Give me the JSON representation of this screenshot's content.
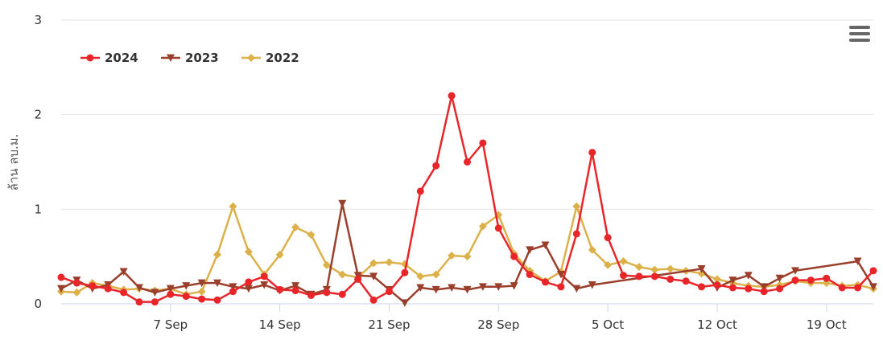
{
  "chart_data": {
    "type": "line",
    "title": "",
    "xlabel": "",
    "ylabel": "ล้าน ลบ.ม.",
    "ylim": [
      0,
      3
    ],
    "y_ticks": [
      "0",
      "1",
      "2",
      "3"
    ],
    "x_tick_labels": [
      "7 Sep",
      "14 Sep",
      "21 Sep",
      "28 Sep",
      "5 Oct",
      "12 Oct",
      "19 Oct"
    ],
    "legend_position": "top-left",
    "grid": true,
    "series": [
      {
        "name": "2024",
        "color": "#e8262a",
        "marker": "circle",
        "points": [
          [
            "2024-08-31",
            0.28
          ],
          [
            "2024-09-01",
            0.22
          ],
          [
            "2024-09-02",
            0.19
          ],
          [
            "2024-09-03",
            0.16
          ],
          [
            "2024-09-04",
            0.12
          ],
          [
            "2024-09-05",
            0.02
          ],
          [
            "2024-09-06",
            0.02
          ],
          [
            "2024-09-07",
            0.1
          ],
          [
            "2024-09-08",
            0.08
          ],
          [
            "2024-09-09",
            0.05
          ],
          [
            "2024-09-10",
            0.04
          ],
          [
            "2024-09-11",
            0.13
          ],
          [
            "2024-09-12",
            0.23
          ],
          [
            "2024-09-13",
            0.29
          ],
          [
            "2024-09-14",
            0.15
          ],
          [
            "2024-09-15",
            0.14
          ],
          [
            "2024-09-16",
            0.09
          ],
          [
            "2024-09-17",
            0.12
          ],
          [
            "2024-09-18",
            0.1
          ],
          [
            "2024-09-19",
            0.26
          ],
          [
            "2024-09-20",
            0.04
          ],
          [
            "2024-09-21",
            0.13
          ],
          [
            "2024-09-22",
            0.33
          ],
          [
            "2024-09-23",
            1.19
          ],
          [
            "2024-09-24",
            1.46
          ],
          [
            "2024-09-25",
            2.2
          ],
          [
            "2024-09-26",
            1.5
          ],
          [
            "2024-09-27",
            1.7
          ],
          [
            "2024-09-28",
            0.8
          ],
          [
            "2024-09-29",
            0.5
          ],
          [
            "2024-09-30",
            0.31
          ],
          [
            "2024-10-01",
            0.23
          ],
          [
            "2024-10-02",
            0.18
          ],
          [
            "2024-10-03",
            0.74
          ],
          [
            "2024-10-04",
            1.6
          ],
          [
            "2024-10-05",
            0.7
          ],
          [
            "2024-10-06",
            0.3
          ],
          [
            "2024-10-07",
            0.29
          ],
          [
            "2024-10-08",
            0.29
          ],
          [
            "2024-10-09",
            0.26
          ],
          [
            "2024-10-10",
            0.24
          ],
          [
            "2024-10-11",
            0.18
          ],
          [
            "2024-10-12",
            0.2
          ],
          [
            "2024-10-13",
            0.17
          ],
          [
            "2024-10-14",
            0.16
          ],
          [
            "2024-10-15",
            0.13
          ],
          [
            "2024-10-16",
            0.16
          ],
          [
            "2024-10-17",
            0.25
          ],
          [
            "2024-10-18",
            0.25
          ],
          [
            "2024-10-19",
            0.27
          ],
          [
            "2024-10-20",
            0.17
          ],
          [
            "2024-10-21",
            0.17
          ],
          [
            "2024-10-22",
            0.35
          ]
        ]
      },
      {
        "name": "2023",
        "color": "#9b3f2d",
        "marker": "triangle-down",
        "points": [
          [
            "2024-08-31",
            0.16
          ],
          [
            "2024-09-01",
            0.25
          ],
          [
            "2024-09-02",
            0.16
          ],
          [
            "2024-09-03",
            0.2
          ],
          [
            "2024-09-04",
            0.34
          ],
          [
            "2024-09-05",
            0.17
          ],
          [
            "2024-09-06",
            0.12
          ],
          [
            "2024-09-07",
            0.16
          ],
          [
            "2024-09-08",
            0.19
          ],
          [
            "2024-09-09",
            0.22
          ],
          [
            "2024-09-10",
            0.22
          ],
          [
            "2024-09-11",
            0.18
          ],
          [
            "2024-09-12",
            0.16
          ],
          [
            "2024-09-13",
            0.2
          ],
          [
            "2024-09-14",
            0.14
          ],
          [
            "2024-09-15",
            0.19
          ],
          [
            "2024-09-16",
            0.1
          ],
          [
            "2024-09-17",
            0.15
          ],
          [
            "2024-09-18",
            1.06
          ],
          [
            "2024-09-19",
            0.3
          ],
          [
            "2024-09-20",
            0.29
          ],
          [
            "2024-09-21",
            0.15
          ],
          [
            "2024-09-22",
            0.01
          ],
          [
            "2024-09-23",
            0.17
          ],
          [
            "2024-09-24",
            0.15
          ],
          [
            "2024-09-25",
            0.17
          ],
          [
            "2024-09-26",
            0.15
          ],
          [
            "2024-09-27",
            0.18
          ],
          [
            "2024-09-28",
            0.18
          ],
          [
            "2024-09-29",
            0.19
          ],
          [
            "2024-09-30",
            0.57
          ],
          [
            "2024-10-01",
            0.62
          ],
          [
            "2024-10-02",
            0.31
          ],
          [
            "2024-10-03",
            0.16
          ],
          [
            "2024-10-04",
            0.2
          ],
          [
            "2024-10-11",
            0.37
          ],
          [
            "2024-10-12",
            0.17
          ],
          [
            "2024-10-13",
            0.25
          ],
          [
            "2024-10-14",
            0.3
          ],
          [
            "2024-10-15",
            0.18
          ],
          [
            "2024-10-16",
            0.27
          ],
          [
            "2024-10-17",
            0.35
          ],
          [
            "2024-10-21",
            0.45
          ],
          [
            "2024-10-22",
            0.18
          ]
        ]
      },
      {
        "name": "2022",
        "color": "#dcb14a",
        "marker": "diamond",
        "points": [
          [
            "2024-08-31",
            0.13
          ],
          [
            "2024-09-01",
            0.12
          ],
          [
            "2024-09-02",
            0.22
          ],
          [
            "2024-09-03",
            0.19
          ],
          [
            "2024-09-04",
            0.15
          ],
          [
            "2024-09-05",
            0.16
          ],
          [
            "2024-09-06",
            0.14
          ],
          [
            "2024-09-07",
            0.16
          ],
          [
            "2024-09-08",
            0.1
          ],
          [
            "2024-09-09",
            0.13
          ],
          [
            "2024-09-10",
            0.52
          ],
          [
            "2024-09-11",
            1.03
          ],
          [
            "2024-09-12",
            0.55
          ],
          [
            "2024-09-13",
            0.31
          ],
          [
            "2024-09-14",
            0.52
          ],
          [
            "2024-09-15",
            0.81
          ],
          [
            "2024-09-16",
            0.73
          ],
          [
            "2024-09-17",
            0.41
          ],
          [
            "2024-09-18",
            0.31
          ],
          [
            "2024-09-19",
            0.28
          ],
          [
            "2024-09-20",
            0.43
          ],
          [
            "2024-09-21",
            0.44
          ],
          [
            "2024-09-22",
            0.42
          ],
          [
            "2024-09-23",
            0.29
          ],
          [
            "2024-09-24",
            0.31
          ],
          [
            "2024-09-25",
            0.51
          ],
          [
            "2024-09-26",
            0.5
          ],
          [
            "2024-09-27",
            0.82
          ],
          [
            "2024-09-28",
            0.94
          ],
          [
            "2024-09-29",
            0.53
          ],
          [
            "2024-09-30",
            0.35
          ],
          [
            "2024-10-01",
            0.24
          ],
          [
            "2024-10-02",
            0.34
          ],
          [
            "2024-10-03",
            1.03
          ],
          [
            "2024-10-04",
            0.57
          ],
          [
            "2024-10-05",
            0.41
          ],
          [
            "2024-10-06",
            0.45
          ],
          [
            "2024-10-07",
            0.39
          ],
          [
            "2024-10-08",
            0.36
          ],
          [
            "2024-10-09",
            0.37
          ],
          [
            "2024-10-10",
            0.35
          ],
          [
            "2024-10-11",
            0.32
          ],
          [
            "2024-10-12",
            0.26
          ],
          [
            "2024-10-13",
            0.22
          ],
          [
            "2024-10-14",
            0.19
          ],
          [
            "2024-10-15",
            0.18
          ],
          [
            "2024-10-16",
            0.2
          ],
          [
            "2024-10-17",
            0.24
          ],
          [
            "2024-10-18",
            0.22
          ],
          [
            "2024-10-19",
            0.22
          ],
          [
            "2024-10-20",
            0.19
          ],
          [
            "2024-10-21",
            0.2
          ],
          [
            "2024-10-22",
            0.16
          ]
        ]
      }
    ]
  }
}
